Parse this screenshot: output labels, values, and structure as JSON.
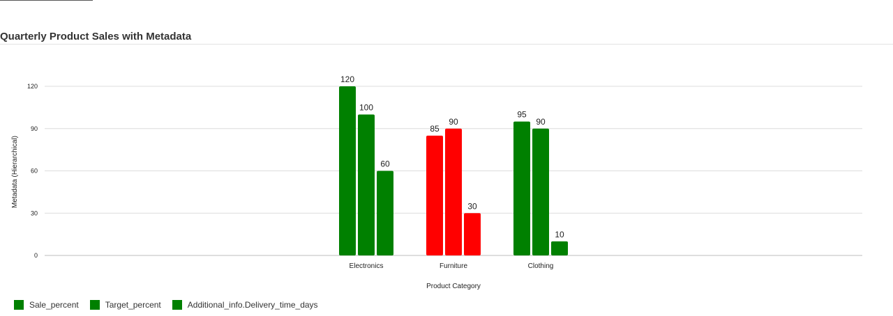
{
  "chart_data": {
    "type": "bar",
    "title": "Quarterly Product Sales with Metadata",
    "xlabel": "Product Category",
    "ylabel": "Metadata (Hierarchical)",
    "categories": [
      "Electronics",
      "Furniture",
      "Clothing"
    ],
    "series": [
      {
        "name": "Sale_percent",
        "values": [
          120,
          85,
          95
        ],
        "color": "#008000"
      },
      {
        "name": "Target_percent",
        "values": [
          100,
          90,
          90
        ],
        "color": "#008000"
      },
      {
        "name": "Additional_info.Delivery_time_days",
        "values": [
          60,
          30,
          10
        ],
        "color": "#008000"
      }
    ],
    "category_colors": {
      "Electronics": "#008000",
      "Furniture": "#ff0000",
      "Clothing": "#008000"
    },
    "ylim": [
      0,
      120
    ],
    "yticks": [
      0,
      30,
      60,
      90,
      120
    ],
    "grid": true,
    "legend": "bottom-left",
    "data_labels": true
  }
}
